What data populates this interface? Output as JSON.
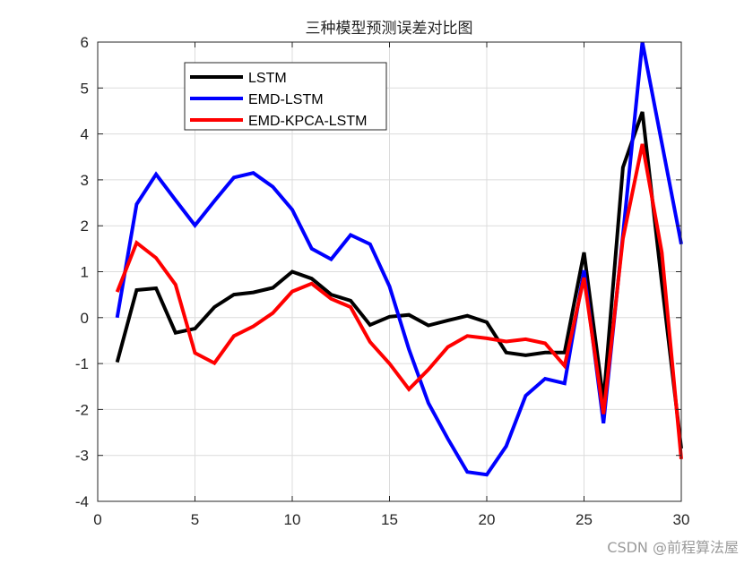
{
  "watermark": "CSDN @前程算法屋",
  "colors": {
    "LSTM": "#000000",
    "EMD-LSTM": "#0000ff",
    "EMD-KPCA-LSTM": "#ff0000",
    "grid": "#dcdcdc",
    "axis": "#262626"
  },
  "chart_data": {
    "type": "line",
    "title": "三种模型预测误差对比图",
    "xlabel": "",
    "ylabel": "",
    "xlim": [
      0,
      30
    ],
    "ylim": [
      -4,
      6
    ],
    "xticks": [
      0,
      5,
      10,
      15,
      20,
      25,
      30
    ],
    "yticks": [
      -4,
      -3,
      -2,
      -1,
      0,
      1,
      2,
      3,
      4,
      5,
      6
    ],
    "grid": true,
    "legend_position": "upper-left-inside",
    "x": [
      1,
      2,
      3,
      4,
      5,
      6,
      7,
      8,
      9,
      10,
      11,
      12,
      13,
      14,
      15,
      16,
      17,
      18,
      19,
      20,
      21,
      22,
      23,
      24,
      25,
      26,
      27,
      28,
      29,
      30
    ],
    "series": [
      {
        "name": "LSTM",
        "color": "#000000",
        "values": [
          -0.97,
          0.6,
          0.64,
          -0.33,
          -0.24,
          0.23,
          0.5,
          0.55,
          0.65,
          1.0,
          0.85,
          0.5,
          0.37,
          -0.16,
          0.02,
          0.06,
          -0.17,
          -0.06,
          0.04,
          -0.1,
          -0.76,
          -0.82,
          -0.76,
          -0.76,
          1.42,
          -1.82,
          3.27,
          4.48,
          0.75,
          -2.85
        ]
      },
      {
        "name": "EMD-LSTM",
        "color": "#0000ff",
        "values": [
          0.0,
          2.47,
          3.12,
          2.56,
          2.01,
          2.54,
          3.05,
          3.15,
          2.85,
          2.35,
          1.5,
          1.27,
          1.8,
          1.6,
          0.68,
          -0.69,
          -1.86,
          -2.64,
          -3.36,
          -3.42,
          -2.8,
          -1.7,
          -1.33,
          -1.43,
          1.03,
          -2.3,
          1.8,
          6.0,
          3.8,
          1.6
        ]
      },
      {
        "name": "EMD-KPCA-LSTM",
        "color": "#ff0000",
        "values": [
          0.56,
          1.63,
          1.3,
          0.72,
          -0.77,
          -0.99,
          -0.4,
          -0.19,
          0.1,
          0.57,
          0.74,
          0.41,
          0.23,
          -0.53,
          -1.0,
          -1.56,
          -1.13,
          -0.64,
          -0.4,
          -0.45,
          -0.52,
          -0.47,
          -0.56,
          -1.05,
          0.87,
          -2.1,
          1.72,
          3.78,
          1.42,
          -3.08
        ]
      }
    ]
  }
}
